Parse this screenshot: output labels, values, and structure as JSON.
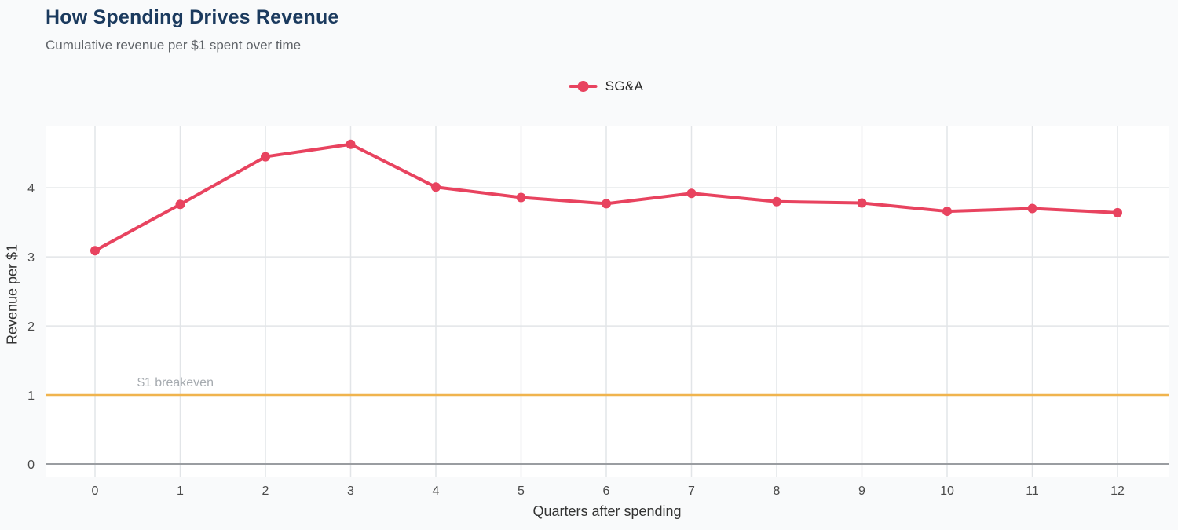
{
  "header": {
    "title": "How Spending Drives Revenue",
    "subtitle": "Cumulative revenue per $1 spent over time"
  },
  "legend": {
    "label": "SG&A"
  },
  "chart_data": {
    "type": "line",
    "title": "How Spending Drives Revenue",
    "subtitle": "Cumulative revenue per $1 spent over time",
    "xlabel": "Quarters after spending",
    "ylabel": "Revenue per $1",
    "x": [
      0,
      1,
      2,
      3,
      4,
      5,
      6,
      7,
      8,
      9,
      10,
      11,
      12
    ],
    "series": [
      {
        "name": "SG&A",
        "values": [
          3.09,
          3.76,
          4.45,
          4.63,
          4.01,
          3.86,
          3.77,
          3.92,
          3.8,
          3.78,
          3.66,
          3.7,
          3.64
        ]
      }
    ],
    "yticks": [
      0,
      1,
      2,
      3,
      4
    ],
    "ylim": [
      0,
      4.9
    ],
    "grid": true,
    "legend_position": "top-center",
    "annotations": [
      {
        "type": "hline",
        "y": 1,
        "label": "$1 breakeven",
        "color": "#f0b44e"
      }
    ],
    "colors": {
      "series": "#e8435f",
      "breakeven": "#f0b44e",
      "grid": "#e2e5e8",
      "zero_line": "#9a9da1",
      "annotation_text": "#a6abb0",
      "tick_text": "#4a4a4a",
      "plot_bg": "#ffffff",
      "page_bg": "#f9fafb"
    }
  }
}
